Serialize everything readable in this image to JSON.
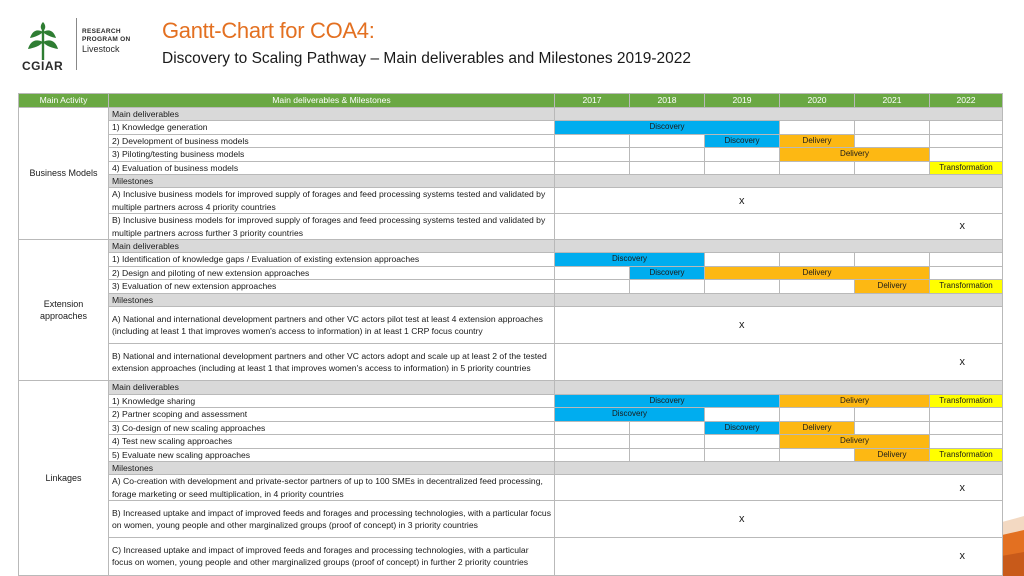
{
  "header": {
    "logo_text": "CGIAR",
    "program_line1": "RESEARCH",
    "program_line2": "PROGRAM ON",
    "program_name": "Livestock",
    "title": "Gantt-Chart for COA4:",
    "subtitle": "Discovery to Scaling Pathway – Main deliverables and Milestones 2019-2022"
  },
  "colors": {
    "discovery": "#00adef",
    "delivery": "#fdb813",
    "transformation": "#ffff00",
    "header_green": "#6aa843",
    "title_orange": "#e37021"
  },
  "table": {
    "col_main_activity": "Main Activity",
    "col_deliverables": "Main deliverables & Milestones",
    "years": [
      "2017",
      "2018",
      "2019",
      "2020",
      "2021",
      "2022"
    ]
  },
  "groups": [
    {
      "name": "Business Models",
      "rows": [
        {
          "text": "Main deliverables",
          "section": true,
          "bars": []
        },
        {
          "text": "1) Knowledge generation",
          "bars": [
            {
              "start": 0,
              "span": 3,
              "color": "blue",
              "label": "Discovery"
            }
          ]
        },
        {
          "text": "2) Development of business models",
          "bars": [
            {
              "start": 2,
              "span": 1,
              "color": "blue",
              "label": "Discovery"
            },
            {
              "start": 3,
              "span": 1,
              "color": "orange",
              "label": "Delivery"
            }
          ]
        },
        {
          "text": "3) Piloting/testing business models",
          "bars": [
            {
              "start": 3,
              "span": 2,
              "color": "orange",
              "label": "Delivery"
            }
          ]
        },
        {
          "text": "4) Evaluation of business models",
          "bars": [
            {
              "start": 5,
              "span": 1,
              "color": "yellow",
              "label": "Transformation"
            }
          ]
        },
        {
          "text": "Milestones",
          "section": true,
          "bars": []
        },
        {
          "text": "A) Inclusive business models for improved supply of forages and feed processing systems tested and validated by multiple partners across 4 priority countries",
          "milestone": 2,
          "mark": "x",
          "lines": 2
        },
        {
          "text": "B) Inclusive business models for improved supply of forages and feed processing systems tested and validated by multiple partners across further 3 priority countries",
          "milestone": 5,
          "mark": "x",
          "lines": 2
        }
      ]
    },
    {
      "name": "Extension approaches",
      "rows": [
        {
          "text": "Main deliverables",
          "section": true,
          "bars": []
        },
        {
          "text": "1) Identification of knowledge gaps / Evaluation of existing extension approaches",
          "bars": [
            {
              "start": 0,
              "span": 2,
              "color": "blue",
              "label": "Discovery"
            }
          ]
        },
        {
          "text": "2) Design and piloting of new extension approaches",
          "bars": [
            {
              "start": 1,
              "span": 1,
              "color": "blue",
              "label": "Discovery"
            },
            {
              "start": 2,
              "span": 3,
              "color": "orange",
              "label": "Delivery"
            }
          ]
        },
        {
          "text": "3) Evaluation of new extension approaches",
          "bars": [
            {
              "start": 4,
              "span": 1,
              "color": "orange",
              "label": "Delivery"
            },
            {
              "start": 5,
              "span": 1,
              "color": "yellow",
              "label": "Transformation"
            }
          ]
        },
        {
          "text": "Milestones",
          "section": true,
          "bars": []
        },
        {
          "text": "A) National and international development partners and other VC actors pilot test at least 4 extension approaches (including at least 1 that improves women's access to information) in at least 1 CRP focus country",
          "milestone": 2,
          "mark": "x",
          "lines": 3
        },
        {
          "text": "B) National and international development partners and other VC actors adopt and scale up at least 2 of the tested extension approaches (including at least 1 that improves women's access to information) in 5 priority countries",
          "milestone": 5,
          "mark": "x",
          "lines": 3
        }
      ]
    },
    {
      "name": "Linkages",
      "rows": [
        {
          "text": "Main deliverables",
          "section": true,
          "bars": []
        },
        {
          "text": "1) Knowledge sharing",
          "bars": [
            {
              "start": 0,
              "span": 3,
              "color": "blue",
              "label": "Discovery"
            },
            {
              "start": 3,
              "span": 2,
              "color": "orange",
              "label": "Delivery"
            },
            {
              "start": 5,
              "span": 1,
              "color": "yellow",
              "label": "Transformation"
            }
          ]
        },
        {
          "text": "2) Partner scoping and assessment",
          "bars": [
            {
              "start": 0,
              "span": 2,
              "color": "blue",
              "label": "Discovery"
            }
          ]
        },
        {
          "text": "3) Co-design of new scaling approaches",
          "bars": [
            {
              "start": 2,
              "span": 1,
              "color": "blue",
              "label": "Discovery"
            },
            {
              "start": 3,
              "span": 1,
              "color": "orange",
              "label": "Delivery"
            }
          ]
        },
        {
          "text": "4) Test new scaling approaches",
          "bars": [
            {
              "start": 3,
              "span": 2,
              "color": "orange",
              "label": "Delivery"
            }
          ]
        },
        {
          "text": "5) Evaluate new scaling approaches",
          "bars": [
            {
              "start": 4,
              "span": 1,
              "color": "orange",
              "label": "Delivery"
            },
            {
              "start": 5,
              "span": 1,
              "color": "yellow",
              "label": "Transformation"
            }
          ]
        },
        {
          "text": "Milestones",
          "section": true,
          "bars": []
        },
        {
          "text": "A) Co-creation with development and private-sector partners of up to 100 SMEs in decentralized feed processing, forage marketing or seed multiplication, in 4 priority countries",
          "milestone": 5,
          "mark": "x",
          "lines": 2
        },
        {
          "text": "B) Increased uptake and impact of improved feeds and forages and processing technologies, with a particular focus on women, young people and other marginalized groups (proof of concept) in 3 priority countries",
          "milestone": 2,
          "mark": "x",
          "lines": 3
        },
        {
          "text": "C) Increased uptake and impact of improved feeds and forages and processing technologies, with a particular focus on women, young people and other marginalized groups (proof of concept) in further 2 priority countries",
          "milestone": 5,
          "mark": "x",
          "lines": 3
        }
      ]
    }
  ]
}
